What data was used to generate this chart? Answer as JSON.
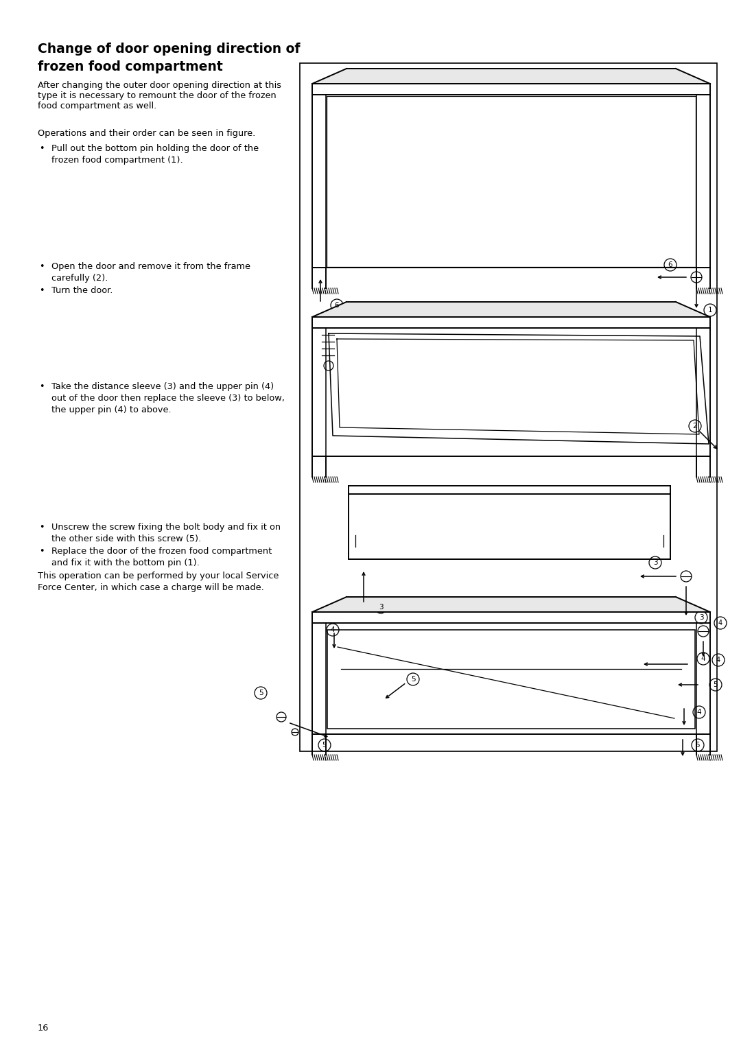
{
  "bg_color": "#ffffff",
  "title_line1": "Change of door opening direction of",
  "title_line2": "frozen food compartment",
  "para1": "After changing the outer door opening direction at this\ntype it is necessary to remount the door of the frozen\nfood compartment as well.",
  "para2": "Operations and their order can be seen in figure.",
  "bullet1a": "Pull out the bottom pin holding the door of the",
  "bullet1b": "frozen food compartment (1).",
  "bullet2a": "Open the door and remove it from the frame",
  "bullet2b": "carefully (2).",
  "bullet3": "Turn the door.",
  "bullet4a": "Take the distance sleeve (3) and the upper pin (4)",
  "bullet4b": "out of the door then replace the sleeve (3) to below,",
  "bullet4c": "the upper pin (4) to above.",
  "bullet5a": "Unscrew the screw fixing the bolt body and fix it on",
  "bullet5b": "the other side with this screw (5).",
  "bullet6a": "Replace the door of the frozen food compartment",
  "bullet6b": "and fix it with the bottom pin (1).",
  "para_end1": "This operation can be performed by your local Service",
  "para_end2": "Force Center, in which case a charge will be made.",
  "page_number": "16"
}
